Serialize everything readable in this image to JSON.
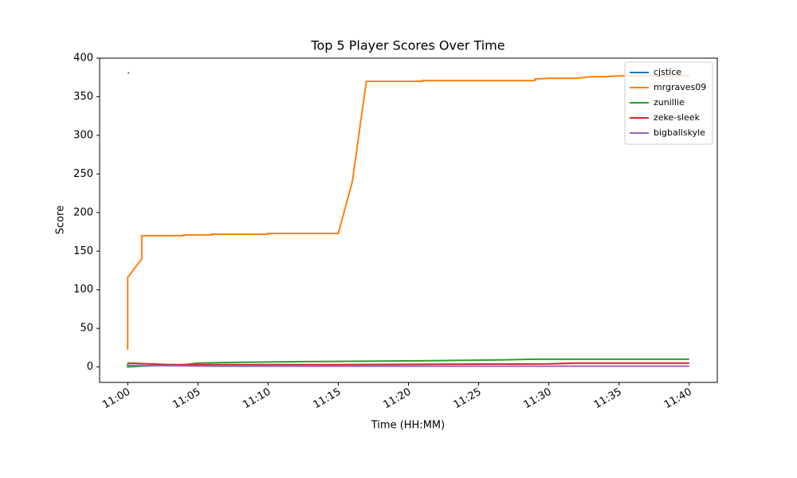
{
  "chart_data": {
    "type": "line",
    "title": "Top 5 Player Scores Over Time",
    "x_label": "Time (HH:MM)",
    "y_label": "Score",
    "xlim": [
      "10:58",
      "11:42"
    ],
    "xticks": [
      "11:00",
      "11:05",
      "11:10",
      "11:15",
      "11:20",
      "11:25",
      "11:30",
      "11:35",
      "11:40"
    ],
    "ylim": [
      -20,
      400
    ],
    "yticks": [
      0,
      50,
      100,
      150,
      200,
      250,
      300,
      350,
      400
    ],
    "legend": "upper right",
    "series": [
      {
        "name": "cjstice",
        "color": "#1f77b4",
        "x": [
          "11:00"
        ],
        "values": [
          381
        ]
      },
      {
        "name": "mrgraves09",
        "color": "#ff7f0e",
        "x": [
          "11:00",
          "11:00",
          "11:00",
          "11:01",
          "11:01",
          "11:04",
          "11:04",
          "11:06",
          "11:06",
          "11:10",
          "11:10",
          "11:15",
          "11:16",
          "11:17",
          "11:21",
          "11:21",
          "11:29",
          "11:29",
          "11:30",
          "11:32",
          "11:33",
          "11:34",
          "11:35",
          "11:40"
        ],
        "values": [
          22,
          116,
          116,
          140,
          170,
          170,
          171,
          171,
          172,
          172,
          173,
          173,
          240,
          370,
          370,
          371,
          371,
          373,
          374,
          374,
          376,
          376,
          377,
          377
        ]
      },
      {
        "name": "zunillie",
        "color": "#2ca02c",
        "x": [
          "11:00",
          "11:00",
          "11:01",
          "11:04",
          "11:05",
          "11:08",
          "11:13",
          "11:21",
          "11:26",
          "11:29",
          "11:40"
        ],
        "values": [
          5,
          0,
          1,
          3,
          5,
          6,
          7,
          8,
          9,
          10,
          10
        ]
      },
      {
        "name": "zeke-sleek",
        "color": "#d62728",
        "x": [
          "11:00",
          "11:03",
          "11:15",
          "11:30",
          "11:32",
          "11:40"
        ],
        "values": [
          5,
          3,
          3,
          4,
          5,
          5
        ]
      },
      {
        "name": "bigballskyle",
        "color": "#9467bd",
        "x": [
          "11:00",
          "11:06",
          "11:40"
        ],
        "values": [
          2,
          1,
          1
        ]
      }
    ]
  }
}
